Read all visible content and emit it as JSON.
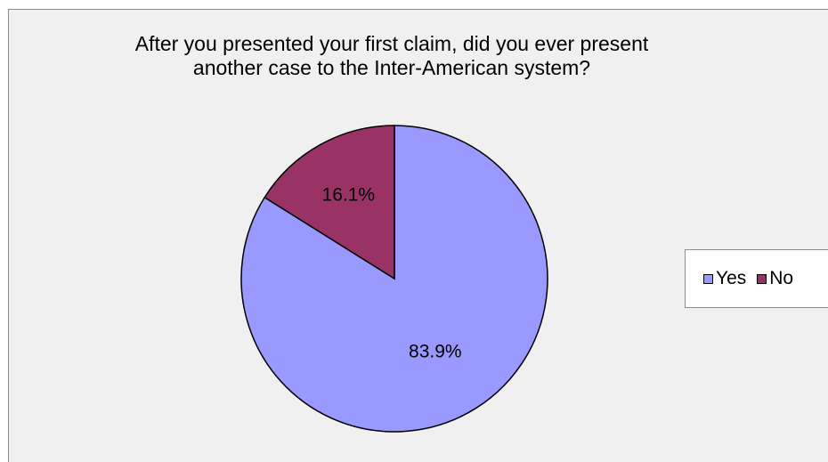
{
  "chart_data": {
    "type": "pie",
    "title_lines": [
      "After you presented your first claim, did you ever present",
      "another case to the Inter-American system?"
    ],
    "categories": [
      "Yes",
      "No"
    ],
    "values": [
      83.9,
      16.1
    ],
    "value_labels": [
      "83.9%",
      "16.1%"
    ],
    "colors": [
      "#9999ff",
      "#993366"
    ],
    "legend_position": "right"
  }
}
